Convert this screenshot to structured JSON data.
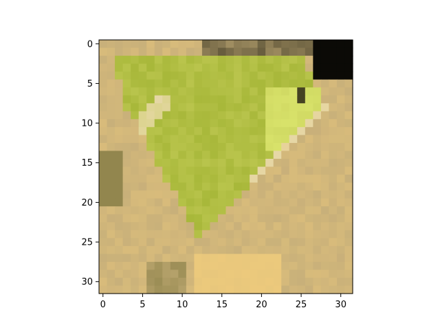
{
  "chart_data": {
    "type": "heatmap",
    "title": "",
    "xlabel": "",
    "ylabel": "",
    "image_size": [
      32,
      32
    ],
    "xlim": [
      -0.5,
      31.5
    ],
    "ylim": [
      31.5,
      -0.5
    ],
    "xticks": [
      0,
      5,
      10,
      15,
      20,
      25,
      30
    ],
    "yticks": [
      0,
      5,
      10,
      15,
      20,
      25,
      30
    ],
    "xtick_labels": [
      "0",
      "5",
      "10",
      "15",
      "20",
      "25",
      "30"
    ],
    "ytick_labels": [
      "0",
      "5",
      "10",
      "15",
      "20",
      "25",
      "30"
    ],
    "grid": false,
    "colors": {
      "background": "#c8b07a",
      "body": "#a8b83a",
      "body_light": "#c4cc58",
      "eye_highlight": "#d8e26a",
      "shadow": "#6e6a30",
      "dark": "#2a2818",
      "black_corner": "#0b0a06",
      "underside": "#e8c77c",
      "cream": "#e6d7a6"
    }
  }
}
